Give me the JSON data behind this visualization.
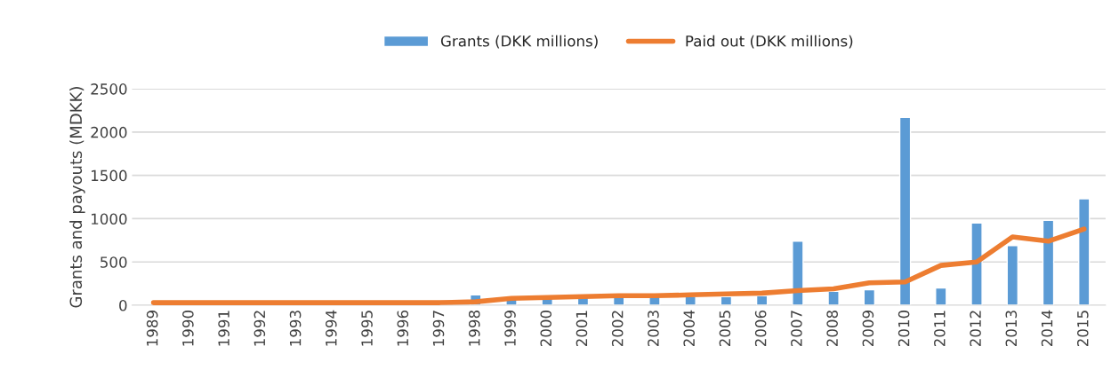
{
  "chart_data": {
    "type": "bar",
    "ylabel": "Grants and payouts (MDKK)",
    "categories": [
      "1989",
      "1990",
      "1991",
      "1992",
      "1993",
      "1994",
      "1995",
      "1996",
      "1997",
      "1998",
      "1999",
      "2000",
      "2001",
      "2002",
      "2003",
      "2004",
      "2005",
      "2006",
      "2007",
      "2008",
      "2009",
      "2010",
      "2011",
      "2012",
      "2013",
      "2014",
      "2015"
    ],
    "series": [
      {
        "name": "Grants (DKK millions)",
        "color": "#5b9bd5",
        "values": [
          null,
          null,
          null,
          null,
          null,
          null,
          null,
          null,
          null,
          120,
          70,
          80,
          90,
          90,
          100,
          100,
          100,
          110,
          740,
          160,
          180,
          2170,
          200,
          950,
          690,
          980,
          1230
        ]
      },
      {
        "name": "Paid out (DKK millions)",
        "type": "line",
        "color": "#ed7d31",
        "values": [
          30,
          30,
          30,
          30,
          30,
          30,
          30,
          30,
          30,
          40,
          80,
          90,
          100,
          110,
          110,
          120,
          130,
          140,
          170,
          190,
          260,
          270,
          460,
          500,
          790,
          740,
          880
        ]
      }
    ],
    "ylim": [
      0,
      2500
    ],
    "yticks": [
      0,
      500,
      1000,
      1500,
      2000,
      2500
    ],
    "grid": "y",
    "legend": "top",
    "marker": "none",
    "line_style": "solid"
  }
}
